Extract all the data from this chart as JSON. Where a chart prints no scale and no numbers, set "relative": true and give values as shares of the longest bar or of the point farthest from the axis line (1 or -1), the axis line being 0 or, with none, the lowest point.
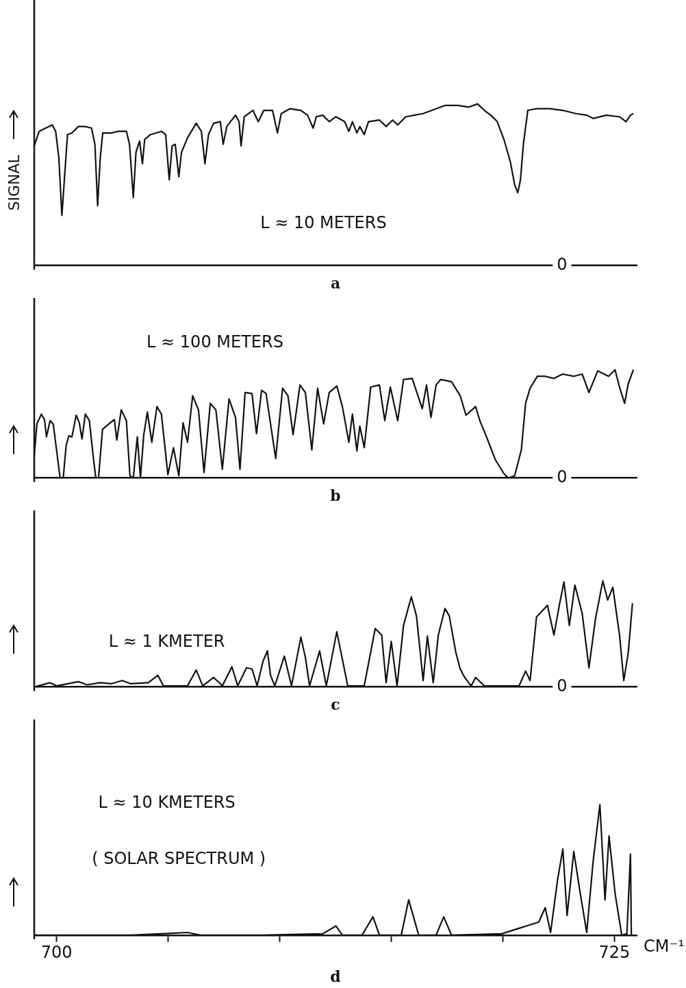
{
  "chart_data": [
    {
      "type": "line",
      "title": "a",
      "ylabel": "SIGNAL",
      "relative": true,
      "grid": false,
      "legend": false,
      "tick_labels": false,
      "xlim": [
        699,
        726
      ],
      "annotations": [
        "L ≈ 10 METERS",
        "0"
      ],
      "series": [
        {
          "color": "#111111",
          "x": [
            699.0,
            699.22,
            699.51,
            699.81,
            699.96,
            700.1,
            700.24,
            700.35,
            700.49,
            700.69,
            700.98,
            701.27,
            701.57,
            701.72,
            701.84,
            701.96,
            702.07,
            702.45,
            702.74,
            703.13,
            703.27,
            703.44,
            703.56,
            703.72,
            703.85,
            703.95,
            704.21,
            704.7,
            704.89,
            705.05,
            705.18,
            705.32,
            705.48,
            705.6,
            705.87,
            706.26,
            706.49,
            706.65,
            706.81,
            707.04,
            707.34,
            707.47,
            707.63,
            708.02,
            708.18,
            708.27,
            708.41,
            708.8,
            709.04,
            709.29,
            709.68,
            709.9,
            710.07,
            710.46,
            710.95,
            711.25,
            711.5,
            711.64,
            711.93,
            712.22,
            712.52,
            712.91,
            713.1,
            713.26,
            713.46,
            713.59,
            713.79,
            713.98,
            714.47,
            714.77,
            715.06,
            715.29,
            715.65,
            716.04,
            716.43,
            717.01,
            717.41,
            717.99,
            718.48,
            718.87,
            719.17,
            719.46,
            719.75,
            720.05,
            720.34,
            720.53,
            720.67,
            720.79,
            720.92,
            721.12,
            721.51,
            722.1,
            722.68,
            723.27,
            723.76,
            724.05,
            724.64,
            725.23,
            725.52,
            725.72,
            725.85
          ],
          "values": [
            0.74,
            0.83,
            0.85,
            0.87,
            0.83,
            0.67,
            0.31,
            0.53,
            0.81,
            0.82,
            0.86,
            0.86,
            0.85,
            0.75,
            0.37,
            0.67,
            0.82,
            0.82,
            0.83,
            0.83,
            0.75,
            0.42,
            0.7,
            0.77,
            0.63,
            0.78,
            0.81,
            0.83,
            0.81,
            0.53,
            0.74,
            0.75,
            0.55,
            0.7,
            0.79,
            0.88,
            0.83,
            0.63,
            0.81,
            0.88,
            0.89,
            0.75,
            0.86,
            0.93,
            0.89,
            0.74,
            0.92,
            0.96,
            0.89,
            0.96,
            0.96,
            0.82,
            0.94,
            0.97,
            0.96,
            0.93,
            0.85,
            0.92,
            0.93,
            0.89,
            0.92,
            0.89,
            0.83,
            0.89,
            0.82,
            0.86,
            0.81,
            0.89,
            0.9,
            0.86,
            0.9,
            0.87,
            0.92,
            0.93,
            0.94,
            0.97,
            0.99,
            0.99,
            0.98,
            1,
            0.96,
            0.93,
            0.89,
            0.78,
            0.64,
            0.5,
            0.45,
            0.53,
            0.75,
            0.96,
            0.97,
            0.97,
            0.96,
            0.94,
            0.93,
            0.91,
            0.93,
            0.92,
            0.89,
            0.93,
            0.94
          ]
        }
      ]
    },
    {
      "type": "line",
      "title": "b",
      "relative": true,
      "grid": false,
      "legend": false,
      "tick_labels": false,
      "xlim": [
        699,
        726
      ],
      "annotations": [
        "L ≈ 100 METERS",
        "0"
      ],
      "series": [
        {
          "color": "#111111",
          "x": [
            699.0,
            699.12,
            699.32,
            699.46,
            699.55,
            699.71,
            699.85,
            700.0,
            700.16,
            700.3,
            700.43,
            700.55,
            700.69,
            700.88,
            701.02,
            701.14,
            701.29,
            701.47,
            701.66,
            701.76,
            701.88,
            702.06,
            702.35,
            702.59,
            702.7,
            702.9,
            703.13,
            703.29,
            703.44,
            703.62,
            703.76,
            703.91,
            704.07,
            704.27,
            704.5,
            704.7,
            704.99,
            705.24,
            705.48,
            705.67,
            705.87,
            706.1,
            706.36,
            706.61,
            706.89,
            707.14,
            707.43,
            707.73,
            708.02,
            708.22,
            708.45,
            708.76,
            708.96,
            709.19,
            709.39,
            709.82,
            710.13,
            710.37,
            710.6,
            710.91,
            711.15,
            711.44,
            711.7,
            711.97,
            712.22,
            712.56,
            712.81,
            713.1,
            713.26,
            713.46,
            713.59,
            713.79,
            714.08,
            714.47,
            714.71,
            714.96,
            715.29,
            715.55,
            715.94,
            716.39,
            716.58,
            716.78,
            717.01,
            717.21,
            717.7,
            718.09,
            718.35,
            718.78,
            718.97,
            719.27,
            719.66,
            720.05,
            720.24,
            720.53,
            720.83,
            721.02,
            721.22,
            721.55,
            721.9,
            722.29,
            722.68,
            723.17,
            723.56,
            723.86,
            724.25,
            724.74,
            725.03,
            725.23,
            725.46,
            725.62,
            725.85
          ],
          "values": [
            0.2,
            0.5,
            0.59,
            0.54,
            0.38,
            0.53,
            0.5,
            0.26,
            0,
            0,
            0.3,
            0.39,
            0.38,
            0.58,
            0.51,
            0.36,
            0.59,
            0.53,
            0.17,
            0,
            0,
            0.45,
            0.5,
            0.54,
            0.35,
            0.63,
            0.53,
            0.02,
            0,
            0.38,
            0,
            0.4,
            0.61,
            0.33,
            0.66,
            0.59,
            0.03,
            0.28,
            0.02,
            0.51,
            0.33,
            0.76,
            0.63,
            0.05,
            0.69,
            0.63,
            0.08,
            0.73,
            0.56,
            0.08,
            0.79,
            0.78,
            0.41,
            0.81,
            0.78,
            0.18,
            0.83,
            0.76,
            0.4,
            0.86,
            0.79,
            0.26,
            0.83,
            0.5,
            0.79,
            0.85,
            0.66,
            0.33,
            0.59,
            0.25,
            0.48,
            0.28,
            0.84,
            0.86,
            0.53,
            0.84,
            0.53,
            0.91,
            0.92,
            0.64,
            0.86,
            0.56,
            0.86,
            0.91,
            0.89,
            0.76,
            0.58,
            0.66,
            0.53,
            0.38,
            0.17,
            0.04,
            0,
            0.02,
            0.26,
            0.69,
            0.83,
            0.94,
            0.94,
            0.92,
            0.96,
            0.94,
            0.96,
            0.79,
            0.99,
            0.94,
            1,
            0.84,
            0.69,
            0.87,
            1
          ]
        }
      ]
    },
    {
      "type": "line",
      "title": "c",
      "relative": true,
      "grid": false,
      "legend": false,
      "tick_labels": false,
      "xlim": [
        699,
        726
      ],
      "annotations": [
        "L ≈ 1 KMETER",
        "0"
      ],
      "series": [
        {
          "color": "#111111",
          "x": [
            699.0,
            699.71,
            700.0,
            700.98,
            701.37,
            701.96,
            702.45,
            702.94,
            703.33,
            704.11,
            704.54,
            704.79,
            705.87,
            706.26,
            706.55,
            707.04,
            707.43,
            707.86,
            708.12,
            708.51,
            708.76,
            708.99,
            709.25,
            709.45,
            709.59,
            709.78,
            710.21,
            710.53,
            710.95,
            711.15,
            711.34,
            711.79,
            712.09,
            712.56,
            713.05,
            713.79,
            714.28,
            714.57,
            714.77,
            715.0,
            715.26,
            715.55,
            715.9,
            716.13,
            716.43,
            716.62,
            716.88,
            717.11,
            717.41,
            717.6,
            717.9,
            718.09,
            718.29,
            718.58,
            718.78,
            719.17,
            720.73,
            721.02,
            721.22,
            721.51,
            722.0,
            722.29,
            722.55,
            722.74,
            722.98,
            723.23,
            723.56,
            723.86,
            724.15,
            724.48,
            724.7,
            724.93,
            725.23,
            725.42,
            725.62,
            725.81
          ],
          "values": [
            0,
            0.04,
            0.01,
            0.05,
            0.02,
            0.04,
            0.03,
            0.06,
            0.03,
            0.04,
            0.11,
            0.01,
            0.01,
            0.16,
            0.01,
            0.09,
            0.01,
            0.19,
            0.01,
            0.18,
            0.17,
            0.01,
            0.24,
            0.34,
            0.11,
            0.01,
            0.29,
            0.01,
            0.47,
            0.28,
            0.01,
            0.34,
            0.01,
            0.52,
            0.01,
            0.01,
            0.55,
            0.49,
            0.04,
            0.43,
            0.01,
            0.58,
            0.85,
            0.67,
            0.06,
            0.48,
            0.04,
            0.49,
            0.74,
            0.67,
            0.32,
            0.17,
            0.09,
            0.01,
            0.09,
            0.01,
            0.01,
            0.15,
            0.06,
            0.66,
            0.77,
            0.49,
            0.79,
            0.99,
            0.58,
            0.96,
            0.69,
            0.18,
            0.64,
            1,
            0.82,
            0.94,
            0.49,
            0.06,
            0.32,
            0.79
          ]
        }
      ]
    },
    {
      "type": "line",
      "title": "d",
      "xlabel": "CM⁻¹",
      "relative": true,
      "grid": false,
      "legend": false,
      "xlim": [
        699,
        726
      ],
      "xticks": [
        700,
        {
          "value": 705,
          "label": null
        },
        {
          "value": 710,
          "label": null
        },
        {
          "value": 715,
          "label": null
        },
        {
          "value": 720,
          "label": null
        },
        725
      ],
      "annotations": [
        "L ≈ 10 KMETERS",
        "( SOLAR SPECTRUM )"
      ],
      "series": [
        {
          "color": "#111111",
          "x": [
            699.0,
            700.4,
            701.76,
            702.59,
            703.33,
            705.87,
            706.46,
            709.19,
            711.93,
            712.52,
            712.81,
            713.69,
            714.18,
            714.47,
            715.45,
            715.78,
            716.23,
            717.01,
            717.35,
            717.7,
            719.95,
            721.61,
            721.9,
            722.14,
            722.45,
            722.69,
            722.88,
            723.18,
            723.47,
            723.76,
            724.05,
            724.35,
            724.58,
            724.76,
            725.03,
            725.33,
            725.56,
            725.72,
            725.76
          ],
          "values": [
            0,
            0,
            0,
            0,
            0,
            0.02,
            0,
            0,
            0.01,
            0.07,
            0,
            0,
            0.14,
            0,
            0,
            0.27,
            0,
            0,
            0.14,
            0,
            0.01,
            0.1,
            0.21,
            0.02,
            0.42,
            0.66,
            0.15,
            0.64,
            0.32,
            0.02,
            0.57,
            1,
            0.27,
            0.76,
            0.32,
            0,
            0.01,
            0.62,
            0
          ]
        }
      ]
    }
  ]
}
